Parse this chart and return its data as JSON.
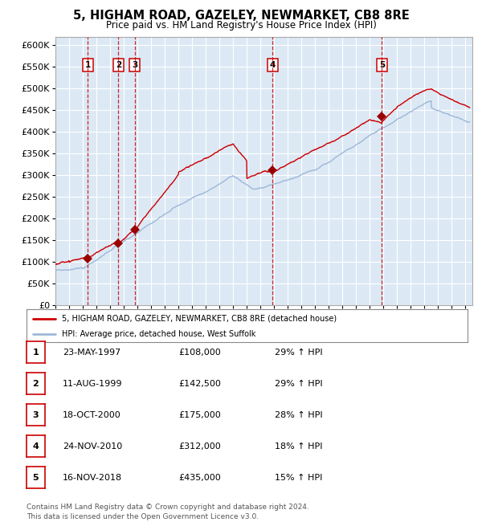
{
  "title": "5, HIGHAM ROAD, GAZELEY, NEWMARKET, CB8 8RE",
  "subtitle": "Price paid vs. HM Land Registry's House Price Index (HPI)",
  "background_color": "#dce9f5",
  "plot_bg": "#dce9f5",
  "hpi_color": "#a0b8d8",
  "price_color": "#cc0000",
  "sale_marker_color": "#990000",
  "dashed_line_color": "#cc0000",
  "ylim": [
    0,
    620000
  ],
  "yticks": [
    0,
    50000,
    100000,
    150000,
    200000,
    250000,
    300000,
    350000,
    400000,
    450000,
    500000,
    550000,
    600000
  ],
  "xlim_start": 1995.0,
  "xlim_end": 2025.5,
  "sales": [
    {
      "label": "1",
      "date": 1997.38,
      "price": 108000
    },
    {
      "label": "2",
      "date": 1999.6,
      "price": 142500
    },
    {
      "label": "3",
      "date": 2000.79,
      "price": 175000
    },
    {
      "label": "4",
      "date": 2010.89,
      "price": 312000
    },
    {
      "label": "5",
      "date": 2018.88,
      "price": 435000
    }
  ],
  "legend_property_label": "5, HIGHAM ROAD, GAZELEY, NEWMARKET, CB8 8RE (detached house)",
  "legend_hpi_label": "HPI: Average price, detached house, West Suffolk",
  "table_rows": [
    {
      "num": "1",
      "date": "23-MAY-1997",
      "price": "£108,000",
      "pct": "29% ↑ HPI"
    },
    {
      "num": "2",
      "date": "11-AUG-1999",
      "price": "£142,500",
      "pct": "29% ↑ HPI"
    },
    {
      "num": "3",
      "date": "18-OCT-2000",
      "price": "£175,000",
      "pct": "28% ↑ HPI"
    },
    {
      "num": "4",
      "date": "24-NOV-2010",
      "price": "£312,000",
      "pct": "18% ↑ HPI"
    },
    {
      "num": "5",
      "date": "16-NOV-2018",
      "price": "£435,000",
      "pct": "15% ↑ HPI"
    }
  ],
  "footer": "Contains HM Land Registry data © Crown copyright and database right 2024.\nThis data is licensed under the Open Government Licence v3.0."
}
